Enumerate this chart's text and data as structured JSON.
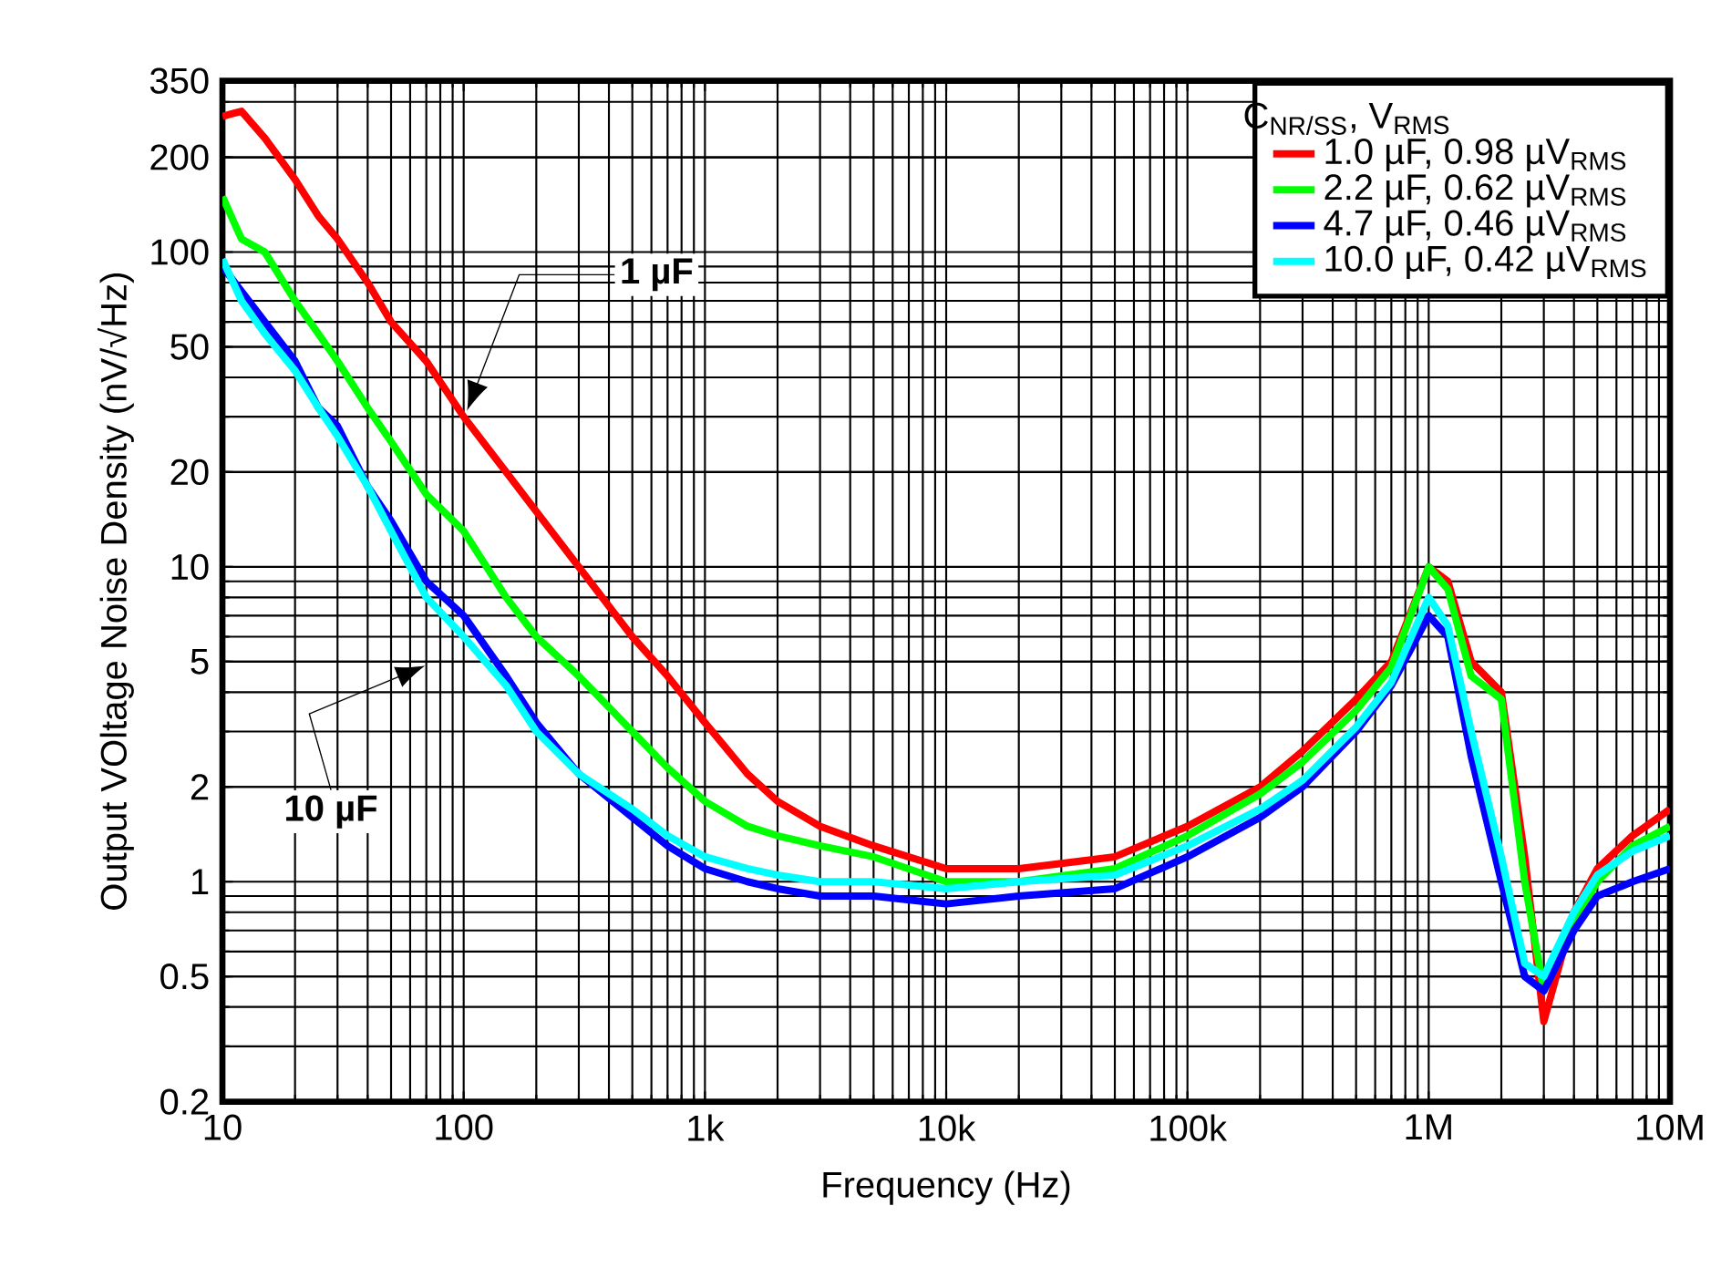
{
  "chart_data": {
    "type": "line",
    "xlabel": "Frequency (Hz)",
    "ylabel": "Output VOltage Noise Density (nV/√Hz)",
    "legend_title": "C$_{NR/SS}$, V$_{RMS}$",
    "log": "xy",
    "grid": true,
    "legend": "top right",
    "line_style": "solid",
    "marker": "none",
    "xlim": [
      10,
      10000000
    ],
    "ylim": [
      0.2,
      350
    ],
    "xticks": [
      10,
      100,
      {
        "value": 1000,
        "label": "1k"
      },
      {
        "value": 10000,
        "label": "10k"
      },
      {
        "value": 100000,
        "label": "100k"
      },
      {
        "value": 1000000,
        "label": "1M"
      },
      {
        "value": 10000000,
        "label": "10M"
      }
    ],
    "yticks": [
      0.2,
      0.5,
      1,
      2,
      5,
      10,
      20,
      50,
      100,
      200,
      350
    ],
    "x": [
      10,
      12,
      15,
      20,
      25,
      30,
      40,
      50,
      70,
      100,
      150,
      200,
      300,
      500,
      700,
      1000,
      1500,
      2000,
      3000,
      5000,
      10000,
      20000,
      50000,
      100000,
      200000,
      300000,
      500000,
      700000,
      1000000,
      1200000,
      1500000,
      2000000,
      2500000,
      3000000,
      4000000,
      5000000,
      7000000,
      10000000
    ],
    "annotations": [
      "1 µF",
      "10 µF"
    ],
    "series": [
      {
        "name": "1.0 µF, 0.98 µV$_{RMS}$",
        "color": "#ff0000",
        "values": [
          270,
          280,
          230,
          170,
          130,
          110,
          80,
          60,
          45,
          30,
          20,
          15,
          10,
          6,
          4.5,
          3.2,
          2.2,
          1.8,
          1.5,
          1.3,
          1.1,
          1.1,
          1.2,
          1.5,
          2.0,
          2.6,
          3.8,
          5,
          10,
          9,
          5,
          4,
          1.2,
          0.36,
          0.8,
          1.1,
          1.4,
          1.7
        ]
      },
      {
        "name": "2.2 µF, 0.62 µV$_{RMS}$",
        "color": "#00ff00",
        "values": [
          150,
          110,
          100,
          70,
          55,
          45,
          32,
          25,
          17,
          13,
          8,
          6,
          4.5,
          3,
          2.3,
          1.8,
          1.5,
          1.4,
          1.3,
          1.2,
          1.0,
          1.0,
          1.1,
          1.4,
          1.9,
          2.4,
          3.5,
          4.8,
          10,
          8.5,
          4.5,
          3.8,
          1.0,
          0.45,
          0.75,
          1.0,
          1.3,
          1.5
        ]
      },
      {
        "name": "4.7 µF, 0.46 µV$_{RMS}$",
        "color": "#0000ff",
        "values": [
          90,
          75,
          60,
          45,
          32,
          28,
          18,
          14,
          9,
          7,
          4.5,
          3.2,
          2.2,
          1.6,
          1.3,
          1.1,
          1.0,
          0.95,
          0.9,
          0.9,
          0.85,
          0.9,
          0.95,
          1.2,
          1.6,
          2.0,
          3.0,
          4.2,
          7,
          6,
          2.5,
          1.0,
          0.5,
          0.45,
          0.7,
          0.9,
          1.0,
          1.1
        ]
      },
      {
        "name": "10.0 µF, 0.42 µV$_{RMS}$",
        "color": "#00ffff",
        "values": [
          95,
          70,
          55,
          42,
          32,
          26,
          18,
          13,
          8,
          6,
          4.2,
          3.0,
          2.2,
          1.7,
          1.4,
          1.2,
          1.1,
          1.05,
          1.0,
          1.0,
          0.95,
          1.0,
          1.05,
          1.3,
          1.7,
          2.1,
          3.1,
          4.3,
          8,
          6.5,
          3,
          1.2,
          0.55,
          0.5,
          0.8,
          1.05,
          1.25,
          1.4
        ]
      }
    ]
  }
}
